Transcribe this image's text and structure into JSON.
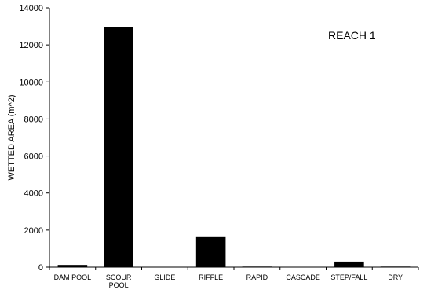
{
  "chart_data": {
    "type": "bar",
    "categories": [
      [
        "DAM POOL"
      ],
      [
        "SCOUR",
        "POOL"
      ],
      [
        "GLIDE"
      ],
      [
        "RIFFLE"
      ],
      [
        "RAPID"
      ],
      [
        "CASCADE"
      ],
      [
        "STEP/FALL"
      ],
      [
        "DRY"
      ]
    ],
    "values": [
      120,
      12950,
      0,
      1620,
      30,
      0,
      300,
      30
    ],
    "xlabel": "",
    "ylabel": "WETTED AREA (m^2)",
    "ylim": [
      0,
      14000
    ],
    "yticks": [
      0,
      2000,
      4000,
      6000,
      8000,
      10000,
      12000,
      14000
    ],
    "annotation": "REACH 1",
    "grid": false,
    "bar_color": "#000000"
  }
}
